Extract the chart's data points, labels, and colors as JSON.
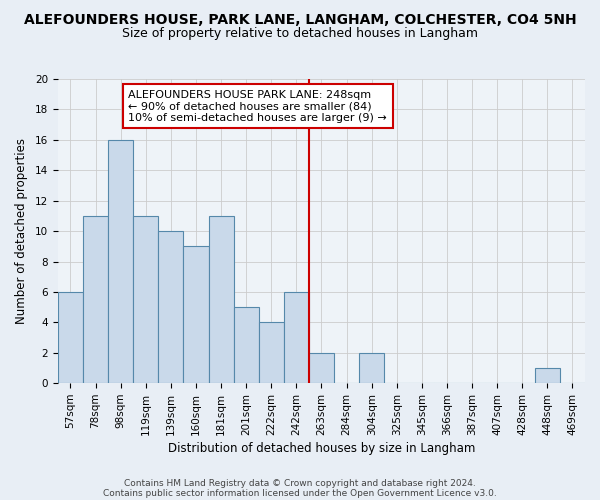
{
  "title": "ALEFOUNDERS HOUSE, PARK LANE, LANGHAM, COLCHESTER, CO4 5NH",
  "subtitle": "Size of property relative to detached houses in Langham",
  "xlabel": "Distribution of detached houses by size in Langham",
  "ylabel": "Number of detached properties",
  "bar_labels": [
    "57sqm",
    "78sqm",
    "98sqm",
    "119sqm",
    "139sqm",
    "160sqm",
    "181sqm",
    "201sqm",
    "222sqm",
    "242sqm",
    "263sqm",
    "284sqm",
    "304sqm",
    "325sqm",
    "345sqm",
    "366sqm",
    "387sqm",
    "407sqm",
    "428sqm",
    "448sqm",
    "469sqm"
  ],
  "bar_heights": [
    6,
    11,
    16,
    11,
    10,
    9,
    11,
    5,
    4,
    6,
    2,
    0,
    2,
    0,
    0,
    0,
    0,
    0,
    0,
    1,
    0
  ],
  "bar_color": "#c9d9ea",
  "bar_edge_color": "#5588aa",
  "grid_color": "#cccccc",
  "vline_x": 9.5,
  "vline_color": "#cc0000",
  "annotation_line1": "ALEFOUNDERS HOUSE PARK LANE: 248sqm",
  "annotation_line2": "← 90% of detached houses are smaller (84)",
  "annotation_line3": "10% of semi-detached houses are larger (9) →",
  "annotation_box_color": "#ffffff",
  "annotation_box_edge": "#cc0000",
  "ylim": [
    0,
    20
  ],
  "yticks": [
    0,
    2,
    4,
    6,
    8,
    10,
    12,
    14,
    16,
    18,
    20
  ],
  "footer1": "Contains HM Land Registry data © Crown copyright and database right 2024.",
  "footer2": "Contains public sector information licensed under the Open Government Licence v3.0.",
  "bg_color": "#e8eef5",
  "plot_bg_color": "#eef3f8",
  "title_fontsize": 10,
  "subtitle_fontsize": 9,
  "axis_label_fontsize": 8.5,
  "tick_fontsize": 7.5,
  "annotation_fontsize": 8,
  "footer_fontsize": 6.5
}
